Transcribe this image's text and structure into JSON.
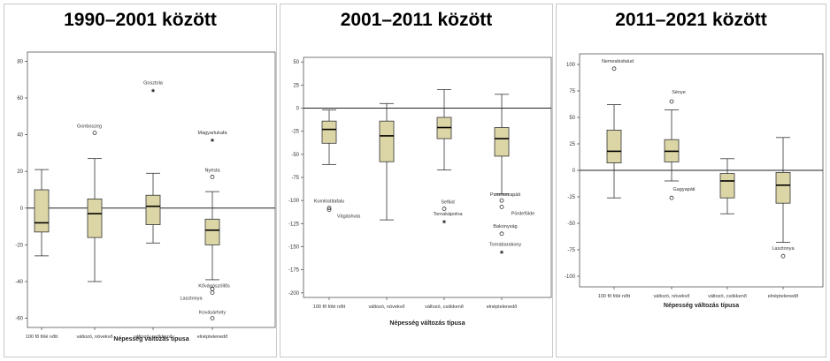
{
  "chart_data": [
    {
      "type": "boxplot",
      "title": "1990–2001 között",
      "xlabel": "Népesség változás típusa",
      "ylabel": "",
      "ylim": [
        -65,
        85
      ],
      "yticks": [
        -60,
        -40,
        -20,
        0,
        20,
        40,
        60,
        80
      ],
      "refline": 0,
      "categories": [
        "100 fő fölé nőtt",
        "változó, növekvő",
        "változó, csökkenő",
        "elnéptelenedő"
      ],
      "boxes": [
        {
          "min": -26,
          "q1": -13,
          "median": -8,
          "q3": 10,
          "max": 21
        },
        {
          "min": -40,
          "q1": -16,
          "median": -3,
          "q3": 5,
          "max": 27
        },
        {
          "min": -19,
          "q1": -9,
          "median": 1,
          "q3": 7,
          "max": 19
        },
        {
          "min": -39,
          "q1": -20,
          "median": -12,
          "q3": -6,
          "max": 9
        }
      ],
      "outliers": [
        {
          "cat": 1,
          "value": 41,
          "label": "Gonboszeg",
          "marker": "circle",
          "dx": -6,
          "dy": -6
        },
        {
          "cat": 2,
          "value": 64,
          "label": "Gosztola",
          "marker": "star",
          "dx": 0,
          "dy": -7
        },
        {
          "cat": 3,
          "value": 37,
          "label": "Magyarlukafa",
          "marker": "star",
          "dx": 0,
          "dy": -7
        },
        {
          "cat": 3,
          "value": 17,
          "label": "Nyésta",
          "marker": "circle",
          "dx": 0,
          "dy": -6
        },
        {
          "cat": 3,
          "value": -44,
          "label": "Kővágószöllős",
          "marker": "circle",
          "dx": 2,
          "dy": -2
        },
        {
          "cat": 3,
          "value": -46,
          "label": "Lasztonya",
          "marker": "circle",
          "dx": -24,
          "dy": 8
        },
        {
          "cat": 3,
          "value": -60,
          "label": "Kovásárhely",
          "marker": "circle",
          "dx": 0,
          "dy": -5
        }
      ]
    },
    {
      "type": "boxplot",
      "title": "2001–2011 között",
      "xlabel": "Népesség változás típusa",
      "ylabel": "",
      "ylim": [
        -205,
        55
      ],
      "yticks": [
        50,
        25,
        0,
        -25,
        -50,
        -75,
        -100,
        -125,
        -150,
        -175,
        -200
      ],
      "refline": 0,
      "categories": [
        "100 fő fölé nőtt",
        "változó, növekvő",
        "változó, csökkenő",
        "elnéptelenedő"
      ],
      "boxes": [
        {
          "min": -61,
          "q1": -38,
          "median": -23,
          "q3": -14,
          "max": -2
        },
        {
          "min": -121,
          "q1": -58,
          "median": -30,
          "q3": -14,
          "max": 5
        },
        {
          "min": -67,
          "q1": -33,
          "median": -21,
          "q3": -10,
          "max": 20
        },
        {
          "min": -93,
          "q1": -52,
          "median": -33,
          "q3": -21,
          "max": 15
        }
      ],
      "outliers": [
        {
          "cat": 0,
          "value": -108,
          "label": "Komlóstitafalu",
          "marker": "circle",
          "dx": 0,
          "dy": -6
        },
        {
          "cat": 0,
          "value": -110,
          "label": "Vágáshuta",
          "marker": "circle",
          "dx": 22,
          "dy": 9
        },
        {
          "cat": 2,
          "value": -109,
          "label": "Sefkid",
          "marker": "circle",
          "dx": 4,
          "dy": -6
        },
        {
          "cat": 2,
          "value": -123,
          "label": "Tornakápolna",
          "marker": "star",
          "dx": 4,
          "dy": -7
        },
        {
          "cat": 3,
          "value": -100,
          "label": "Pusztaszapáti",
          "marker": "circle",
          "dx": 4,
          "dy": -5
        },
        {
          "cat": 3,
          "value": -107,
          "label": "Pördefölde",
          "marker": "circle",
          "dx": 24,
          "dy": 9
        },
        {
          "cat": 3,
          "value": -136,
          "label": "Bakonyság",
          "marker": "circle",
          "dx": 4,
          "dy": -7
        },
        {
          "cat": 3,
          "value": -156,
          "label": "Tornabarakony",
          "marker": "star",
          "dx": 4,
          "dy": -7
        }
      ]
    },
    {
      "type": "boxplot",
      "title": "2011–2021 között",
      "xlabel": "Népesség változás típusa",
      "ylabel": "",
      "ylim": [
        -110,
        110
      ],
      "yticks": [
        100,
        75,
        50,
        25,
        0,
        -25,
        -50,
        -75,
        -100
      ],
      "refline": 0,
      "categories": [
        "100 fő fölé nőtt",
        "változó, növekvő",
        "változó, csökkenő",
        "elnéptelenedő"
      ],
      "boxes": [
        {
          "min": -26,
          "q1": 7,
          "median": 18,
          "q3": 38,
          "max": 62
        },
        {
          "min": -10,
          "q1": 8,
          "median": 18,
          "q3": 29,
          "max": 57
        },
        {
          "min": -41,
          "q1": -26,
          "median": -10,
          "q3": -3,
          "max": 11
        },
        {
          "min": -68,
          "q1": -31,
          "median": -14,
          "q3": -2,
          "max": 31
        }
      ],
      "outliers": [
        {
          "cat": 0,
          "value": 96,
          "label": "Nemeskisfalud",
          "marker": "circle",
          "dx": 4,
          "dy": -7
        },
        {
          "cat": 1,
          "value": 65,
          "label": "Sénye",
          "marker": "circle",
          "dx": 8,
          "dy": -9
        },
        {
          "cat": 1,
          "value": -26,
          "label": "Gagyapáti",
          "marker": "circle",
          "dx": 14,
          "dy": -8
        },
        {
          "cat": 3,
          "value": -81,
          "label": "Lasztonya",
          "marker": "circle",
          "dx": 0,
          "dy": -7
        }
      ]
    }
  ]
}
